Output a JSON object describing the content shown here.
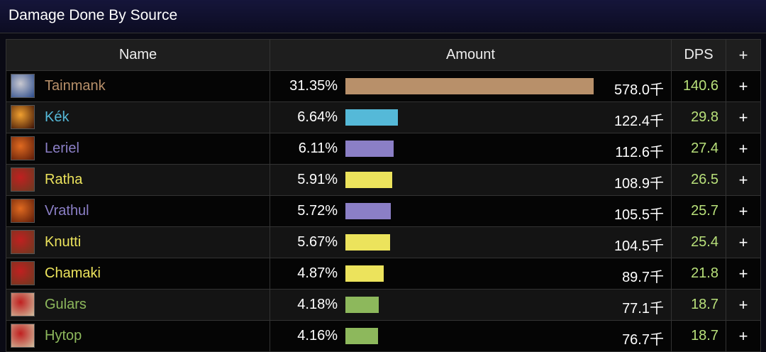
{
  "title": "Damage Done By Source",
  "headers": {
    "name": "Name",
    "amount": "Amount",
    "dps": "DPS",
    "plus": "+"
  },
  "max_percent": 31.35,
  "rows": [
    {
      "name": "Tainmank",
      "percent": "31.35%",
      "pct": 31.35,
      "amount": "578.0千",
      "dps": "140.6",
      "plus": "+",
      "color": "#b8906a",
      "icon": "shield-icon",
      "icon_colors": [
        "#2a4a8a",
        "#c8c8d0"
      ]
    },
    {
      "name": "Kék",
      "percent": "6.64%",
      "pct": 6.64,
      "amount": "122.4千",
      "dps": "29.8",
      "plus": "+",
      "color": "#55b9d8",
      "icon": "fireball-icon",
      "icon_colors": [
        "#3a1005",
        "#f0a030"
      ]
    },
    {
      "name": "Leriel",
      "percent": "6.11%",
      "pct": 6.11,
      "amount": "112.6千",
      "dps": "27.4",
      "plus": "+",
      "color": "#8b7fc6",
      "icon": "claw-icon",
      "icon_colors": [
        "#5a1a08",
        "#e06a20"
      ]
    },
    {
      "name": "Ratha",
      "percent": "5.91%",
      "pct": 5.91,
      "amount": "108.9千",
      "dps": "26.5",
      "plus": "+",
      "color": "#ece35c",
      "icon": "blade-icon",
      "icon_colors": [
        "#6a3a20",
        "#c02020"
      ]
    },
    {
      "name": "Vrathul",
      "percent": "5.72%",
      "pct": 5.72,
      "amount": "105.5千",
      "dps": "25.7",
      "plus": "+",
      "color": "#8b7fc6",
      "icon": "claw-icon",
      "icon_colors": [
        "#5a1a08",
        "#e06a20"
      ]
    },
    {
      "name": "Knutti",
      "percent": "5.67%",
      "pct": 5.67,
      "amount": "104.5千",
      "dps": "25.4",
      "plus": "+",
      "color": "#ece35c",
      "icon": "blade-icon",
      "icon_colors": [
        "#6a3a20",
        "#c02020"
      ]
    },
    {
      "name": "Chamaki",
      "percent": "4.87%",
      "pct": 4.87,
      "amount": "89.7千",
      "dps": "21.8",
      "plus": "+",
      "color": "#ece35c",
      "icon": "blade-icon",
      "icon_colors": [
        "#6a3a20",
        "#c02020"
      ]
    },
    {
      "name": "Gulars",
      "percent": "4.18%",
      "pct": 4.18,
      "amount": "77.1千",
      "dps": "18.7",
      "plus": "+",
      "color": "#8db85c",
      "icon": "target-icon",
      "icon_colors": [
        "#d0c0a0",
        "#c02020"
      ]
    },
    {
      "name": "Hytop",
      "percent": "4.16%",
      "pct": 4.16,
      "amount": "76.7千",
      "dps": "18.7",
      "plus": "+",
      "color": "#8db85c",
      "icon": "target-icon",
      "icon_colors": [
        "#d0c0a0",
        "#c02020"
      ]
    }
  ]
}
